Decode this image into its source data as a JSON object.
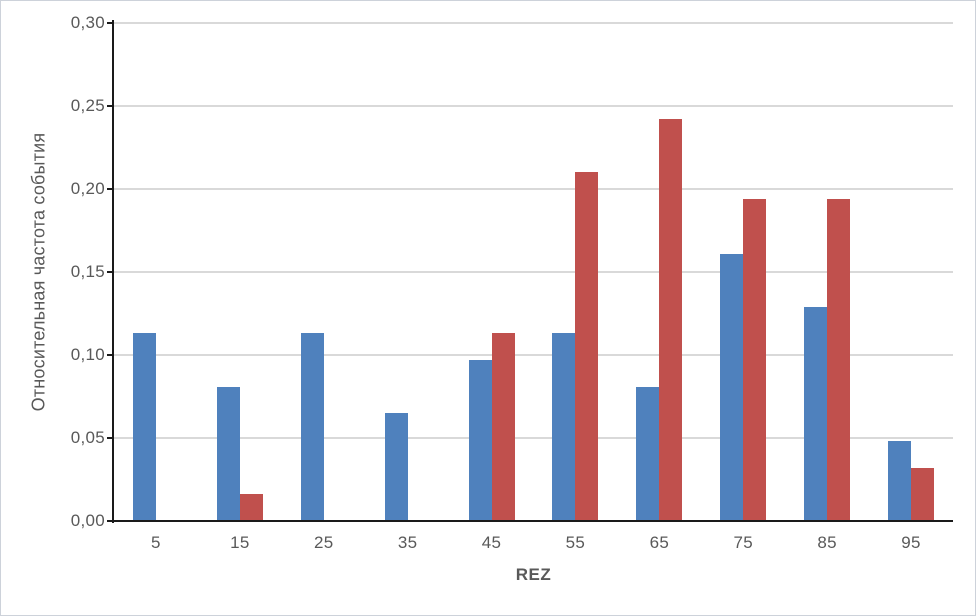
{
  "chart_data": {
    "type": "bar",
    "title": "",
    "xlabel": "REZ",
    "ylabel": "Относительная частота события",
    "categories": [
      "5",
      "15",
      "25",
      "35",
      "45",
      "55",
      "65",
      "75",
      "85",
      "95"
    ],
    "series": [
      {
        "name": "blue",
        "color": "#4F81BD",
        "values": [
          0.113,
          0.081,
          0.113,
          0.065,
          0.097,
          0.113,
          0.081,
          0.161,
          0.129,
          0.048
        ]
      },
      {
        "name": "red",
        "color": "#C0504D",
        "values": [
          0,
          0.016,
          0,
          0,
          0.113,
          0.21,
          0.242,
          0.194,
          0.194,
          0.032
        ]
      }
    ],
    "ylim": [
      0,
      0.3
    ],
    "ytick_step": 0.05,
    "yticks": [
      {
        "value": 0.0,
        "label": "0,00"
      },
      {
        "value": 0.05,
        "label": "0,05"
      },
      {
        "value": 0.1,
        "label": "0,10"
      },
      {
        "value": 0.15,
        "label": "0,15"
      },
      {
        "value": 0.2,
        "label": "0,20"
      },
      {
        "value": 0.25,
        "label": "0,25"
      },
      {
        "value": 0.3,
        "label": "0,30"
      }
    ],
    "grid": true,
    "legend": "none",
    "decimal_separator": ","
  }
}
